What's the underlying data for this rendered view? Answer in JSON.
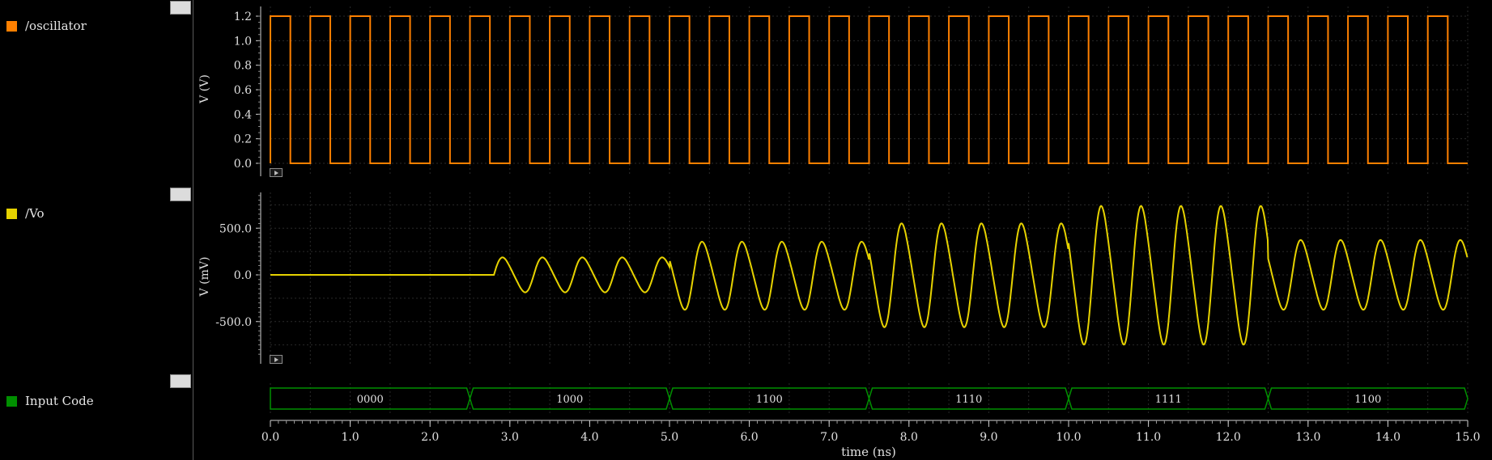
{
  "signals": [
    {
      "name": "/oscillator",
      "color": "#ff8000",
      "icon": "filter-icon"
    },
    {
      "name": "/Vo",
      "color": "#e6d200",
      "icon": "filter-icon"
    },
    {
      "name": "Input Code",
      "color": "#008f00",
      "icon": "filter-icon"
    }
  ],
  "chart_data": [
    {
      "type": "line",
      "series": [
        {
          "name": "/oscillator",
          "color": "#ff8000"
        }
      ],
      "ylabel": "V (V)",
      "ylim": [
        0.0,
        1.2
      ],
      "yticks": [
        "0.0",
        "0.2",
        "0.4",
        "0.6",
        "0.8",
        "1.0",
        "1.2"
      ],
      "period_ns": 0.5,
      "high_V": 1.2,
      "low_V": 0.0,
      "duty": 0.5
    },
    {
      "type": "line",
      "series": [
        {
          "name": "/Vo",
          "color": "#e6d200"
        }
      ],
      "ylabel": "V (mV)",
      "ylim": [
        -900,
        900
      ],
      "yticks": [
        "-500.0",
        "0.0",
        "500.0"
      ],
      "signal_start_ns": 2.8,
      "period_ns": 0.5,
      "segments": [
        {
          "from": 2.5,
          "to": 5.0,
          "peak_mV": 200,
          "trough_mV": -200
        },
        {
          "from": 5.0,
          "to": 7.5,
          "peak_mV": 380,
          "trough_mV": -400
        },
        {
          "from": 7.5,
          "to": 10.0,
          "peak_mV": 590,
          "trough_mV": -600
        },
        {
          "from": 10.0,
          "to": 12.5,
          "peak_mV": 790,
          "trough_mV": -800
        },
        {
          "from": 12.5,
          "to": 15.0,
          "peak_mV": 400,
          "trough_mV": -400
        }
      ]
    },
    {
      "type": "bus",
      "series": [
        {
          "name": "Input Code",
          "color": "#008f00"
        }
      ],
      "values": [
        {
          "from": 0.0,
          "to": 2.5,
          "label": "0000"
        },
        {
          "from": 2.5,
          "to": 5.0,
          "label": "1000"
        },
        {
          "from": 5.0,
          "to": 7.5,
          "label": "1100"
        },
        {
          "from": 7.5,
          "to": 10.0,
          "label": "1110"
        },
        {
          "from": 10.0,
          "to": 12.5,
          "label": "1111"
        },
        {
          "from": 12.5,
          "to": 15.0,
          "label": "1100"
        }
      ]
    }
  ],
  "xaxis": {
    "label": "time (ns)",
    "xlim": [
      0.0,
      15.0
    ],
    "ticks": [
      "0.0",
      "1.0",
      "2.0",
      "3.0",
      "4.0",
      "5.0",
      "6.0",
      "7.0",
      "8.0",
      "9.0",
      "10.0",
      "11.0",
      "12.0",
      "13.0",
      "14.0",
      "15.0"
    ]
  }
}
